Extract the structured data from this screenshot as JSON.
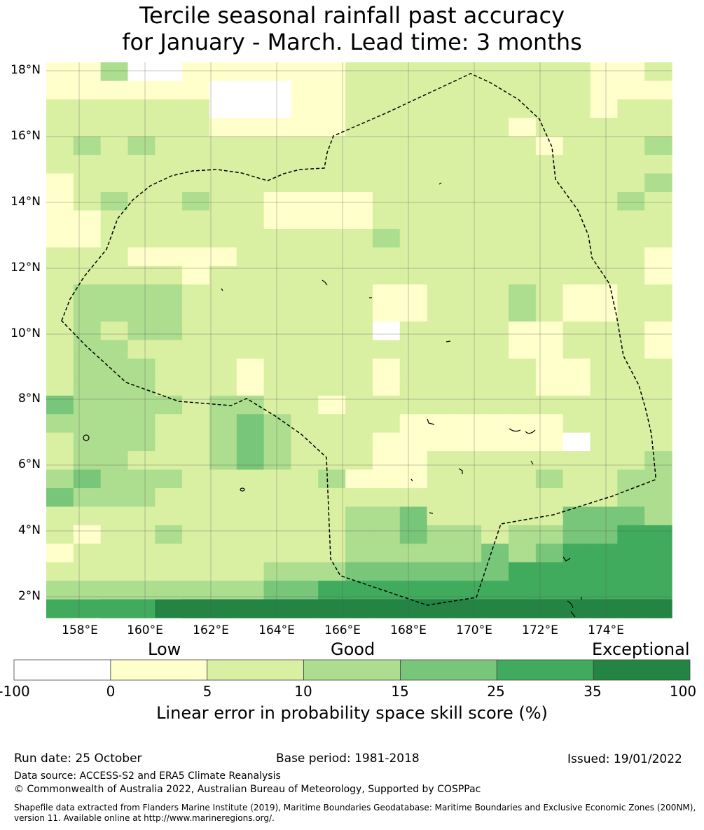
{
  "title": {
    "line1": "Tercile seasonal rainfall past accuracy",
    "line2": "for January - March. Lead time: 3 months"
  },
  "map": {
    "lat_labels": [
      "18°N",
      "16°N",
      "14°N",
      "12°N",
      "10°N",
      "8°N",
      "6°N",
      "4°N",
      "2°N"
    ],
    "lon_labels": [
      "158°E",
      "160°E",
      "162°E",
      "164°E",
      "166°E",
      "168°E",
      "170°E",
      "172°E",
      "174°E"
    ]
  },
  "legend": {
    "categories": [
      "Low",
      "Good",
      "Exceptional"
    ],
    "colors": [
      "#ffffff",
      "#ffffcc",
      "#d9f0a3",
      "#addd8e",
      "#78c679",
      "#41ab5d",
      "#238443"
    ],
    "ticks": [
      "-100",
      "0",
      "5",
      "10",
      "15",
      "25",
      "35",
      "100"
    ],
    "title": "Linear error in probability space skill score (%)"
  },
  "footer": {
    "run_date": "Run date: 25 October",
    "base_period": "Base period: 1981-2018",
    "issued": "Issued: 19/01/2022",
    "data_source": "Data source: ACCESS-S2 and ERA5 Climate Reanalysis",
    "copyright": "© Commonwealth of Australia 2022, Australian Bureau of Meteorology, Supported by COSPPac",
    "shapefile_line1": "Shapefile data extracted from Flanders Marine Institute (2019), Maritime Boundaries Geodatabase: Maritime Boundaries and Exclusive Economic Zones (200NM),",
    "shapefile_line2": "version 11. Available online at http://www.marineregions.org/."
  }
}
